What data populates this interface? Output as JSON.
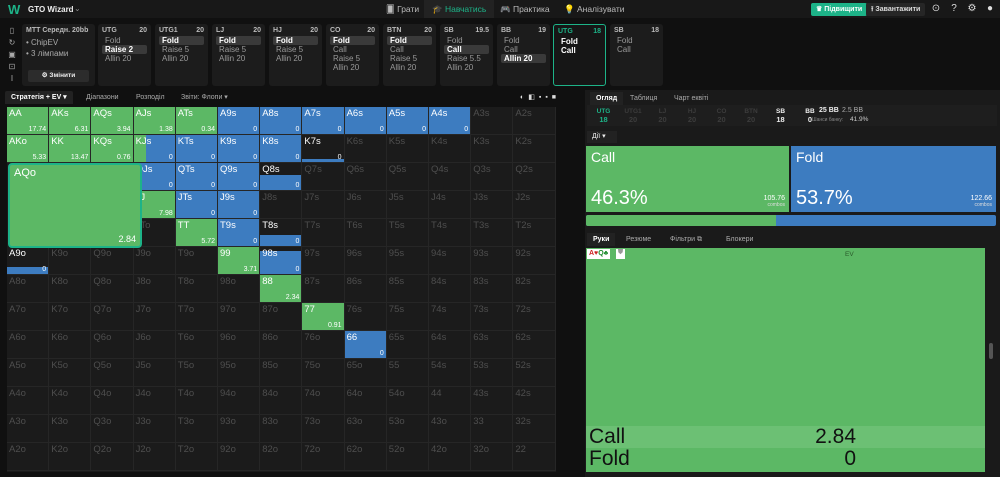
{
  "app": {
    "logo": "W",
    "title": "GTO Wizard"
  },
  "nav": [
    {
      "label": "Грати",
      "icon": "cards-icon"
    },
    {
      "label": "Навчатись",
      "icon": "graduation-icon",
      "active": true
    },
    {
      "label": "Практика",
      "icon": "gamepad-icon"
    },
    {
      "label": "Аналізувати",
      "icon": "bulb-icon"
    }
  ],
  "header": {
    "upgrade": "♛ Підвищити",
    "upload": "⭱ Завантажити"
  },
  "colors": {
    "call": "#5cb865",
    "fold": "#3d7cc0",
    "accent": "#1db388"
  },
  "config": {
    "title": "MTT Середн. 20bb",
    "items": [
      "• ChipEV",
      "• 3 лімпами"
    ],
    "change": "⚙ Змінити"
  },
  "positions": [
    {
      "pos": "UTG",
      "stack": "20",
      "actions": [
        "Fold",
        "Raise 2",
        "Allin 20"
      ],
      "sel": 1
    },
    {
      "pos": "UTG1",
      "stack": "20",
      "actions": [
        "Fold",
        "Raise 5",
        "Allin 20"
      ],
      "sel": 0
    },
    {
      "pos": "LJ",
      "stack": "20",
      "actions": [
        "Fold",
        "Raise 5",
        "Allin 20"
      ],
      "sel": 0
    },
    {
      "pos": "HJ",
      "stack": "20",
      "actions": [
        "Fold",
        "Raise 5",
        "Allin 20"
      ],
      "sel": 0
    },
    {
      "pos": "CO",
      "stack": "20",
      "actions": [
        "Fold",
        "Call",
        "Raise 5",
        "Allin 20"
      ],
      "sel": 0
    },
    {
      "pos": "BTN",
      "stack": "20",
      "actions": [
        "Fold",
        "Call",
        "Raise 5",
        "Allin 20"
      ],
      "sel": 0
    },
    {
      "pos": "SB",
      "stack": "19.5",
      "actions": [
        "Fold",
        "Call",
        "Raise 5.5",
        "Allin 20"
      ],
      "sel": 1
    },
    {
      "pos": "BB",
      "stack": "19",
      "actions": [
        "Fold",
        "Call",
        "Allin 20"
      ],
      "sel": 2
    },
    {
      "pos": "UTG",
      "stack": "18",
      "actions": [
        "Fold",
        "Call"
      ],
      "sel": -1,
      "active": true
    },
    {
      "pos": "SB",
      "stack": "18",
      "actions": [
        "Fold",
        "Call"
      ],
      "sel": -1
    }
  ],
  "left_tabs": [
    "Стратегія + EV ▾",
    "Діапазони",
    "Розподіл",
    "Звіти: Флопи ▾"
  ],
  "grid": [
    [
      {
        "h": "AA",
        "c": 1,
        "w": 1,
        "ev": "17.74"
      },
      {
        "h": "AKs",
        "c": 1,
        "w": 1,
        "ev": "6.31"
      },
      {
        "h": "AQs",
        "c": 1,
        "w": 1,
        "ev": "3.94"
      },
      {
        "h": "AJs",
        "c": 1,
        "w": 1,
        "ev": "1.38"
      },
      {
        "h": "ATs",
        "c": 1,
        "w": 1,
        "ev": "0.34"
      },
      {
        "h": "A9s",
        "c": 0,
        "w": 1,
        "ev": "0"
      },
      {
        "h": "A8s",
        "c": 0,
        "w": 1,
        "ev": "0"
      },
      {
        "h": "A7s",
        "c": 0,
        "w": 1,
        "ev": "0"
      },
      {
        "h": "A6s",
        "c": 0,
        "w": 1,
        "ev": "0"
      },
      {
        "h": "A5s",
        "c": 0,
        "w": 1,
        "ev": "0"
      },
      {
        "h": "A4s",
        "c": 0,
        "w": 1,
        "ev": "0"
      },
      {
        "h": "A3s"
      },
      {
        "h": "A2s"
      }
    ],
    [
      {
        "h": "AKo",
        "c": 1,
        "w": 1,
        "ev": "5.33"
      },
      {
        "h": "KK",
        "c": 1,
        "w": 1,
        "ev": "13.47"
      },
      {
        "h": "KQs",
        "c": 1,
        "w": 1,
        "ev": "0.76"
      },
      {
        "h": "KJs",
        "c": 0.3,
        "w": 1,
        "ev": "0"
      },
      {
        "h": "KTs",
        "c": 0,
        "w": 1,
        "ev": "0"
      },
      {
        "h": "K9s",
        "c": 0,
        "w": 1,
        "ev": "0"
      },
      {
        "h": "K8s",
        "c": 0,
        "w": 1,
        "ev": "0"
      },
      {
        "h": "K7s",
        "c": 0,
        "w": 0.12,
        "ev": "0"
      },
      {
        "h": "K6s"
      },
      {
        "h": "K5s"
      },
      {
        "h": "K4s"
      },
      {
        "h": "K3s"
      },
      {
        "h": "K2s"
      }
    ],
    [
      null,
      null,
      null,
      {
        "h": "QJs",
        "c": 0,
        "w": 1,
        "ev": "0"
      },
      {
        "h": "QTs",
        "c": 0,
        "w": 1,
        "ev": "0"
      },
      {
        "h": "Q9s",
        "c": 0,
        "w": 1,
        "ev": "0"
      },
      {
        "h": "Q8s",
        "c": 0,
        "w": 0.55,
        "ev": "0"
      },
      {
        "h": "Q7s"
      },
      {
        "h": "Q6s"
      },
      {
        "h": "Q5s"
      },
      {
        "h": "Q4s"
      },
      {
        "h": "Q3s"
      },
      {
        "h": "Q2s"
      }
    ],
    [
      null,
      null,
      null,
      {
        "h": "JJ",
        "c": 1,
        "w": 1,
        "ev": "7.98"
      },
      {
        "h": "JTs",
        "c": 0,
        "w": 1,
        "ev": "0"
      },
      {
        "h": "J9s",
        "c": 0,
        "w": 1,
        "ev": "0"
      },
      {
        "h": "J8s"
      },
      {
        "h": "J7s"
      },
      {
        "h": "J6s"
      },
      {
        "h": "J5s"
      },
      {
        "h": "J4s"
      },
      {
        "h": "J3s"
      },
      {
        "h": "J2s"
      }
    ],
    [
      null,
      null,
      null,
      {
        "h": "JTo"
      },
      {
        "h": "TT",
        "c": 1,
        "w": 1,
        "ev": "5.72"
      },
      {
        "h": "T9s",
        "c": 0,
        "w": 1,
        "ev": "0"
      },
      {
        "h": "T8s",
        "c": 0,
        "w": 0.4,
        "ev": "0"
      },
      {
        "h": "T7s"
      },
      {
        "h": "T6s"
      },
      {
        "h": "T5s"
      },
      {
        "h": "T4s"
      },
      {
        "h": "T3s"
      },
      {
        "h": "T2s"
      }
    ],
    [
      {
        "h": "A9o",
        "c": 0,
        "w": 0.25,
        "ev": "0"
      },
      {
        "h": "K9o"
      },
      {
        "h": "Q9o"
      },
      {
        "h": "J9o"
      },
      {
        "h": "T9o"
      },
      {
        "h": "99",
        "c": 1,
        "w": 1,
        "ev": "3.71"
      },
      {
        "h": "98s",
        "c": 0,
        "w": 0.85,
        "ev": "0"
      },
      {
        "h": "97s"
      },
      {
        "h": "96s"
      },
      {
        "h": "95s"
      },
      {
        "h": "94s"
      },
      {
        "h": "93s"
      },
      {
        "h": "92s"
      }
    ],
    [
      {
        "h": "A8o"
      },
      {
        "h": "K8o"
      },
      {
        "h": "Q8o"
      },
      {
        "h": "J8o"
      },
      {
        "h": "T8o"
      },
      {
        "h": "98o"
      },
      {
        "h": "88",
        "c": 1,
        "w": 1,
        "ev": "2.34"
      },
      {
        "h": "87s"
      },
      {
        "h": "86s"
      },
      {
        "h": "85s"
      },
      {
        "h": "84s"
      },
      {
        "h": "83s"
      },
      {
        "h": "82s"
      }
    ],
    [
      {
        "h": "A7o"
      },
      {
        "h": "K7o"
      },
      {
        "h": "Q7o"
      },
      {
        "h": "J7o"
      },
      {
        "h": "T7o"
      },
      {
        "h": "97o"
      },
      {
        "h": "87o"
      },
      {
        "h": "77",
        "c": 1,
        "w": 1,
        "ev": "0.91"
      },
      {
        "h": "76s"
      },
      {
        "h": "75s"
      },
      {
        "h": "74s"
      },
      {
        "h": "73s"
      },
      {
        "h": "72s"
      }
    ],
    [
      {
        "h": "A6o"
      },
      {
        "h": "K6o"
      },
      {
        "h": "Q6o"
      },
      {
        "h": "J6o"
      },
      {
        "h": "T6o"
      },
      {
        "h": "96o"
      },
      {
        "h": "86o"
      },
      {
        "h": "76o"
      },
      {
        "h": "66",
        "c": 0,
        "w": 1,
        "ev": "0"
      },
      {
        "h": "65s"
      },
      {
        "h": "64s"
      },
      {
        "h": "63s"
      },
      {
        "h": "62s"
      }
    ],
    [
      {
        "h": "A5o"
      },
      {
        "h": "K5o"
      },
      {
        "h": "Q5o"
      },
      {
        "h": "J5o"
      },
      {
        "h": "T5o"
      },
      {
        "h": "95o"
      },
      {
        "h": "85o"
      },
      {
        "h": "75o"
      },
      {
        "h": "65o"
      },
      {
        "h": "55"
      },
      {
        "h": "54s"
      },
      {
        "h": "53s"
      },
      {
        "h": "52s"
      }
    ],
    [
      {
        "h": "A4o"
      },
      {
        "h": "K4o"
      },
      {
        "h": "Q4o"
      },
      {
        "h": "J4o"
      },
      {
        "h": "T4o"
      },
      {
        "h": "94o"
      },
      {
        "h": "84o"
      },
      {
        "h": "74o"
      },
      {
        "h": "64o"
      },
      {
        "h": "54o"
      },
      {
        "h": "44"
      },
      {
        "h": "43s"
      },
      {
        "h": "42s"
      }
    ],
    [
      {
        "h": "A3o"
      },
      {
        "h": "K3o"
      },
      {
        "h": "Q3o"
      },
      {
        "h": "J3o"
      },
      {
        "h": "T3o"
      },
      {
        "h": "93o"
      },
      {
        "h": "83o"
      },
      {
        "h": "73o"
      },
      {
        "h": "63o"
      },
      {
        "h": "53o"
      },
      {
        "h": "43o"
      },
      {
        "h": "33"
      },
      {
        "h": "32s"
      }
    ],
    [
      {
        "h": "A2o"
      },
      {
        "h": "K2o"
      },
      {
        "h": "Q2o"
      },
      {
        "h": "J2o"
      },
      {
        "h": "T2o"
      },
      {
        "h": "92o"
      },
      {
        "h": "82o"
      },
      {
        "h": "72o"
      },
      {
        "h": "62o"
      },
      {
        "h": "52o"
      },
      {
        "h": "42o"
      },
      {
        "h": "32o"
      },
      {
        "h": "22"
      }
    ]
  ],
  "hovered": {
    "hand": "AQo",
    "ev": "2.84"
  },
  "right": {
    "tabs": [
      "Огляд",
      "Таблиця",
      "Чарт еквіті"
    ],
    "stacks": [
      {
        "p": "UTG",
        "s": "18",
        "state": "active"
      },
      {
        "p": "UTG1",
        "s": "20"
      },
      {
        "p": "LJ",
        "s": "20"
      },
      {
        "p": "HJ",
        "s": "20"
      },
      {
        "p": "CO",
        "s": "20"
      },
      {
        "p": "BTN",
        "s": "20"
      },
      {
        "p": "SB",
        "s": "18",
        "state": "on"
      },
      {
        "p": "BB",
        "s": "0",
        "state": "on"
      }
    ],
    "pot": "25 BB",
    "pot2": "2.5 BB",
    "odds_label": "Шанси банку:",
    "odds": "41.9%",
    "actions_dd": "Дії ▾",
    "call": {
      "name": "Call",
      "pct": "46.3%",
      "combos": "105.76",
      "unit": "combos",
      "frac": 0.463
    },
    "fold": {
      "name": "Fold",
      "pct": "53.7%",
      "combos": "122.66",
      "unit": "combos"
    },
    "hand_tabs": [
      "Руки",
      "Резюме",
      "Фільтри ⧉",
      "Блокери"
    ],
    "hand": {
      "a": "A♥",
      "q": "Q♣",
      "ev_header": "EV",
      "rows": [
        {
          "a": "Call",
          "v": "2.84"
        },
        {
          "a": "Fold",
          "v": "0"
        }
      ]
    }
  }
}
